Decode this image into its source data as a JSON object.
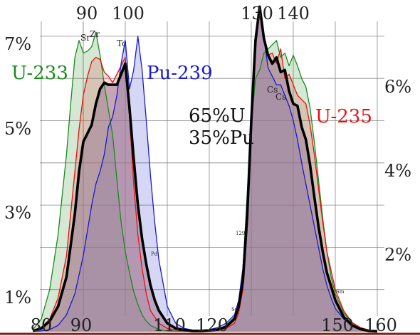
{
  "chart_data": {
    "type": "area",
    "title": "",
    "xlabel": "",
    "ylabel": "",
    "xlim": [
      78,
      161
    ],
    "ylim": [
      0,
      7.5
    ],
    "grid": true,
    "x_ticks_top": [
      "90",
      "100",
      "130",
      "140"
    ],
    "x_ticks_top_values": [
      90,
      100,
      130,
      140
    ],
    "x_ticks_bottom": [
      "80",
      "90",
      "110",
      "120",
      "150",
      "160"
    ],
    "x_ticks_bottom_values": [
      80,
      90,
      110,
      120,
      150,
      160
    ],
    "y_ticks_left": [
      "1%",
      "3%",
      "5%",
      "7%"
    ],
    "y_ticks_left_values": [
      1,
      3,
      5,
      7
    ],
    "y_ticks_right": [
      "2%",
      "4%",
      "6%"
    ],
    "y_ticks_right_values": [
      2,
      4,
      6
    ],
    "annotations": [
      {
        "text": "Sr",
        "x": 89.8,
        "y": 7.15
      },
      {
        "text": "Zr",
        "x": 92.0,
        "y": 7.25
      },
      {
        "text": "Tc",
        "x": 98.8,
        "y": 7.0
      },
      {
        "text": "Cs",
        "x": 133.0,
        "y": 5.85
      },
      {
        "text": "Cs",
        "x": 134.3,
        "y": 5.68
      },
      {
        "text": "129I",
        "x": 126.7,
        "y": 2.3
      },
      {
        "text": "Pd",
        "x": 103.4,
        "y": 1.9
      },
      {
        "text": "Sn",
        "x": 122.0,
        "y": 0.53
      },
      {
        "text": "Sm",
        "x": 148.5,
        "y": 1.02
      }
    ],
    "labels": [
      "U-233",
      "Pu-239",
      "65%U",
      "35%Pu",
      "U-235"
    ],
    "colors": {
      "U-233": "#1a8a1a",
      "U-235": "#e81010",
      "Pu-239": "#1a1acc",
      "mix": "#000000",
      "fill_overlap": "#9e7e96",
      "baseline": "#8b1a1a",
      "grid": "#888888"
    },
    "series": [
      {
        "name": "U-233",
        "x": [
          78,
          80,
          82,
          84,
          86,
          87,
          88,
          89,
          90,
          91,
          92,
          93,
          94,
          95,
          96,
          97,
          98,
          99,
          100,
          101,
          102,
          103,
          104,
          105,
          106,
          108,
          110,
          112,
          114,
          116,
          118,
          120,
          122,
          124,
          126,
          127,
          128,
          129,
          130,
          131,
          132,
          133,
          134,
          135,
          136,
          137,
          138,
          139,
          140,
          141,
          142,
          143,
          144,
          145,
          146,
          147,
          148,
          149,
          150,
          152,
          154,
          156,
          158,
          160
        ],
        "values": [
          0.05,
          0.3,
          1.0,
          2.3,
          4.2,
          5.4,
          6.5,
          6.9,
          6.6,
          6.65,
          6.75,
          7.1,
          6.55,
          5.85,
          5.25,
          4.65,
          3.6,
          2.6,
          1.9,
          1.4,
          0.95,
          0.65,
          0.4,
          0.25,
          0.15,
          0.05,
          0.02,
          0.01,
          0.01,
          0.01,
          0.01,
          0.02,
          0.05,
          0.15,
          0.35,
          0.7,
          1.5,
          3.2,
          4.9,
          6.0,
          6.2,
          6.6,
          6.7,
          6.8,
          6.9,
          6.5,
          6.6,
          6.3,
          6.55,
          6.3,
          6.0,
          5.8,
          5.3,
          4.5,
          3.6,
          2.7,
          1.9,
          1.3,
          0.9,
          0.45,
          0.2,
          0.08,
          0.03,
          0.01
        ]
      },
      {
        "name": "U-235",
        "x": [
          78,
          80,
          82,
          84,
          86,
          88,
          89,
          90,
          91,
          92,
          93,
          94,
          95,
          96,
          97,
          98,
          99,
          100,
          101,
          102,
          103,
          104,
          105,
          106,
          108,
          110,
          112,
          114,
          116,
          118,
          120,
          122,
          124,
          126,
          127,
          128,
          129,
          130,
          131,
          132,
          133,
          134,
          135,
          136,
          137,
          138,
          139,
          140,
          141,
          142,
          143,
          144,
          145,
          146,
          147,
          148,
          150,
          152,
          154,
          156,
          158,
          160
        ],
        "values": [
          0.02,
          0.1,
          0.3,
          0.8,
          1.8,
          3.8,
          4.8,
          5.6,
          6.05,
          6.4,
          6.5,
          6.45,
          6.15,
          6.05,
          5.9,
          6.1,
          6.3,
          6.5,
          5.1,
          3.5,
          2.3,
          1.5,
          0.9,
          0.5,
          0.2,
          0.08,
          0.04,
          0.02,
          0.01,
          0.01,
          0.02,
          0.03,
          0.08,
          0.2,
          0.45,
          1.0,
          2.5,
          5.0,
          6.7,
          7.65,
          7.05,
          6.55,
          6.6,
          6.35,
          6.7,
          6.0,
          6.1,
          5.85,
          5.6,
          5.5,
          5.4,
          4.9,
          4.2,
          3.4,
          2.6,
          1.9,
          1.0,
          0.5,
          0.22,
          0.1,
          0.04,
          0.01
        ]
      },
      {
        "name": "Pu-239",
        "x": [
          78,
          80,
          82,
          84,
          86,
          88,
          90,
          91,
          92,
          93,
          94,
          95,
          96,
          97,
          98,
          99,
          100,
          101,
          102,
          103,
          104,
          105,
          106,
          107,
          108,
          110,
          112,
          114,
          116,
          118,
          120,
          122,
          124,
          126,
          127,
          128,
          129,
          130,
          131,
          132,
          133,
          134,
          135,
          136,
          137,
          138,
          139,
          140,
          141,
          142,
          143,
          144,
          145,
          146,
          147,
          148,
          149,
          150,
          152,
          154,
          156,
          158,
          160
        ],
        "values": [
          0.01,
          0.02,
          0.05,
          0.15,
          0.4,
          0.9,
          1.8,
          2.4,
          3.0,
          3.5,
          3.8,
          4.2,
          4.85,
          5.1,
          5.6,
          6.35,
          6.9,
          5.75,
          6.2,
          7.0,
          6.2,
          5.0,
          3.7,
          2.6,
          1.7,
          0.6,
          0.2,
          0.08,
          0.04,
          0.03,
          0.05,
          0.1,
          0.2,
          0.4,
          0.75,
          1.5,
          3.0,
          5.0,
          7.05,
          7.7,
          6.95,
          6.25,
          6.05,
          5.85,
          5.85,
          5.6,
          5.35,
          5.0,
          4.55,
          4.0,
          3.5,
          3.0,
          2.5,
          2.0,
          1.5,
          1.1,
          0.8,
          0.55,
          0.3,
          0.15,
          0.07,
          0.03,
          0.01
        ]
      },
      {
        "name": "65%U 35%Pu",
        "x": [
          78,
          80,
          82,
          84,
          86,
          88,
          89,
          90,
          91,
          92,
          93,
          94,
          95,
          96,
          97,
          98,
          99,
          100,
          101,
          102,
          103,
          104,
          105,
          106,
          107,
          108,
          110,
          112,
          114,
          116,
          118,
          120,
          122,
          124,
          126,
          127,
          128,
          129,
          130,
          131,
          132,
          133,
          134,
          135,
          136,
          137,
          138,
          139,
          140,
          141,
          142,
          143,
          144,
          145,
          146,
          147,
          148,
          150,
          152,
          154,
          156,
          158,
          160
        ],
        "values": [
          0.02,
          0.08,
          0.25,
          0.6,
          1.3,
          2.8,
          3.8,
          4.5,
          4.7,
          4.9,
          5.4,
          5.75,
          5.9,
          5.85,
          5.85,
          5.85,
          6.1,
          6.35,
          5.3,
          4.1,
          3.0,
          2.2,
          1.6,
          1.1,
          0.75,
          0.5,
          0.2,
          0.08,
          0.04,
          0.02,
          0.02,
          0.03,
          0.05,
          0.12,
          0.3,
          0.6,
          1.2,
          2.7,
          5.0,
          6.9,
          7.7,
          6.95,
          6.55,
          6.35,
          6.5,
          6.15,
          6.2,
          5.7,
          5.4,
          5.35,
          4.85,
          4.55,
          3.95,
          3.2,
          2.5,
          1.9,
          1.4,
          0.75,
          0.35,
          0.15,
          0.06,
          0.02,
          0.01
        ]
      }
    ]
  }
}
